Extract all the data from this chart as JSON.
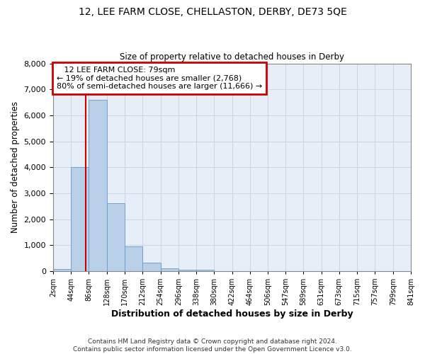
{
  "title_line1": "12, LEE FARM CLOSE, CHELLASTON, DERBY, DE73 5QE",
  "title_line2": "Size of property relative to detached houses in Derby",
  "xlabel": "Distribution of detached houses by size in Derby",
  "ylabel": "Number of detached properties",
  "footer_line1": "Contains HM Land Registry data © Crown copyright and database right 2024.",
  "footer_line2": "Contains public sector information licensed under the Open Government Licence v3.0.",
  "annotation_line1": "12 LEE FARM CLOSE: 79sqm",
  "annotation_line2": "← 19% of detached houses are smaller (2,768)",
  "annotation_line3": "80% of semi-detached houses are larger (11,666) →",
  "property_size": 79,
  "bins": [
    2,
    44,
    86,
    128,
    170,
    212,
    254,
    296,
    338,
    380,
    422,
    464,
    506,
    547,
    589,
    631,
    673,
    715,
    757,
    799,
    841
  ],
  "bar_heights": [
    70,
    4000,
    6600,
    2620,
    950,
    330,
    110,
    60,
    40,
    0,
    0,
    0,
    0,
    0,
    0,
    0,
    0,
    0,
    0,
    0
  ],
  "bar_color": "#b8cfe8",
  "bar_edge_color": "#6699cc",
  "vline_color": "#cc0000",
  "annotation_box_edge_color": "#cc0000",
  "grid_color": "#c8d4e8",
  "background_color": "#e8eef8",
  "ylim": [
    0,
    8000
  ],
  "yticks": [
    0,
    1000,
    2000,
    3000,
    4000,
    5000,
    6000,
    7000,
    8000
  ]
}
